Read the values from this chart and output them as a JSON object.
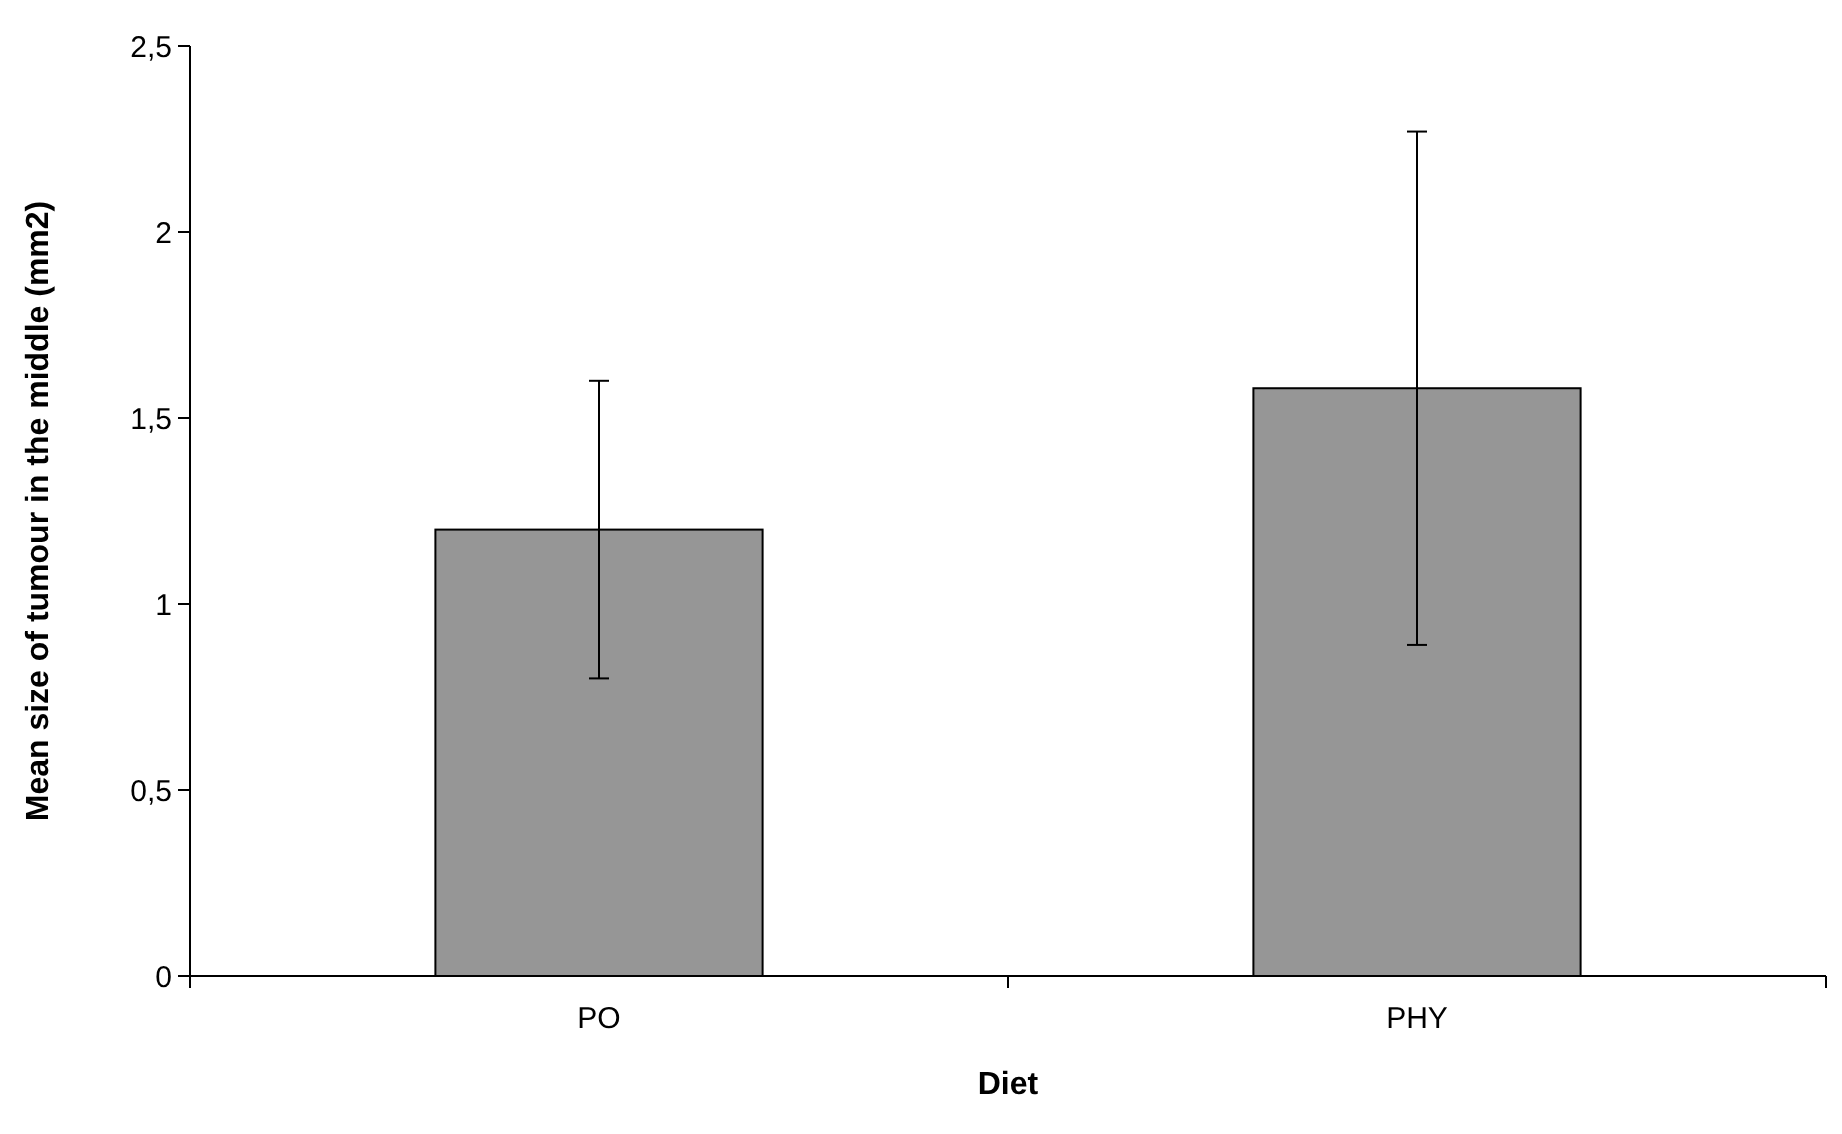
{
  "chart_data": {
    "type": "bar",
    "xlabel": "Diet",
    "ylabel": "Mean size of tumour in the middle (mm2)",
    "categories": [
      "PO",
      "PHY"
    ],
    "series": [
      {
        "color": "#969696",
        "values": [
          1.2,
          1.58
        ],
        "errors": [
          0.4,
          0.69
        ]
      }
    ],
    "ylim": [
      0,
      2.5
    ],
    "yticks": [
      {
        "value": 0,
        "label": "0"
      },
      {
        "value": 0.5,
        "label": "0,5"
      },
      {
        "value": 1,
        "label": "1"
      },
      {
        "value": 1.5,
        "label": "1,5"
      },
      {
        "value": 2,
        "label": "2"
      },
      {
        "value": 2.5,
        "label": "2,5"
      }
    ],
    "grid": false
  }
}
